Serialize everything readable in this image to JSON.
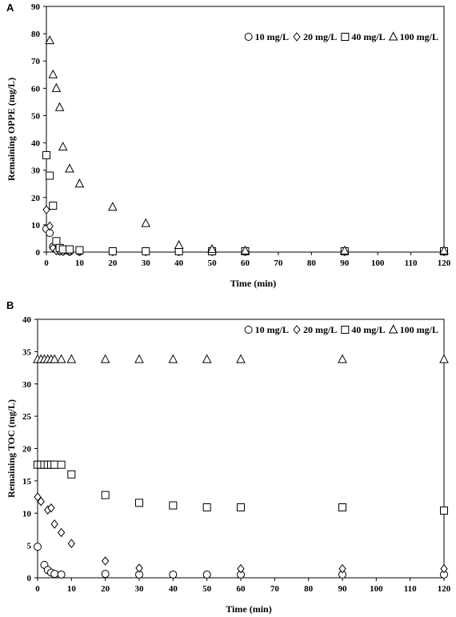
{
  "chart_data": [
    {
      "type": "scatter",
      "panel_label": "A",
      "xlabel": "Time (min)",
      "ylabel": "Remaining OPPE  (mg/L)",
      "xlim": [
        0,
        120
      ],
      "ylim": [
        0,
        90
      ],
      "x_ticks": [
        "0",
        "10",
        "20",
        "30",
        "40",
        "50",
        "60",
        "70",
        "80",
        "90",
        "100",
        "110",
        "120"
      ],
      "y_ticks": [
        "0",
        "10",
        "20",
        "30",
        "40",
        "50",
        "60",
        "70",
        "80",
        "90"
      ],
      "legend_position": "top-right",
      "series": [
        {
          "name": "10 mg/L",
          "marker": "circle",
          "x": [
            0,
            1,
            2,
            3,
            4,
            5,
            7,
            10,
            20,
            30,
            40,
            50,
            60,
            90,
            120
          ],
          "y": [
            8.5,
            7,
            2,
            1,
            0.5,
            0.3,
            0.2,
            0.2,
            0.2,
            0.2,
            0.2,
            0.2,
            0.2,
            0.2,
            0.2
          ]
        },
        {
          "name": "20 mg/L",
          "marker": "diamond",
          "x": [
            0,
            1,
            2,
            3,
            4,
            5,
            7,
            10,
            20,
            30,
            40,
            50,
            60,
            90,
            120
          ],
          "y": [
            15.5,
            9.5,
            1.5,
            0.5,
            0.3,
            0.2,
            0.2,
            0.2,
            0.2,
            0.2,
            0.2,
            0.2,
            0.2,
            0.2,
            0.2
          ]
        },
        {
          "name": "40 mg/L",
          "marker": "square",
          "x": [
            0,
            1,
            2,
            3,
            4,
            5,
            7,
            10,
            20,
            30,
            40,
            50,
            60,
            90,
            120
          ],
          "y": [
            35.5,
            28,
            17,
            4,
            1.5,
            1,
            1,
            0.7,
            0.3,
            0.3,
            0.3,
            0.3,
            0.3,
            0.3,
            0.3
          ]
        },
        {
          "name": "100 mg/L",
          "marker": "triangle",
          "x": [
            1,
            2,
            3,
            4,
            5,
            7,
            10,
            20,
            30,
            40,
            50,
            60,
            90,
            120
          ],
          "y": [
            77.5,
            65,
            60,
            53,
            38.5,
            30.5,
            25,
            16.5,
            10.5,
            2.5,
            1,
            0.5,
            0.5,
            0.5
          ]
        }
      ]
    },
    {
      "type": "scatter",
      "panel_label": "B",
      "xlabel": "Time (min)",
      "ylabel": "Remaining TOC  (mg/L)",
      "xlim": [
        0,
        120
      ],
      "ylim": [
        0,
        40
      ],
      "x_ticks": [
        "0",
        "10",
        "20",
        "30",
        "40",
        "50",
        "60",
        "70",
        "80",
        "90",
        "100",
        "110",
        "120"
      ],
      "y_ticks": [
        "0",
        "5",
        "10",
        "15",
        "20",
        "25",
        "30",
        "35",
        "40"
      ],
      "legend_position": "top-right",
      "series": [
        {
          "name": "10 mg/L",
          "marker": "circle",
          "x": [
            0,
            2,
            3,
            4,
            5,
            7,
            20,
            30,
            40,
            50,
            60,
            90,
            120
          ],
          "y": [
            4.8,
            2,
            1.2,
            0.8,
            0.6,
            0.5,
            0.6,
            0.5,
            0.5,
            0.5,
            0.5,
            0.5,
            0.5
          ]
        },
        {
          "name": "20 mg/L",
          "marker": "diamond",
          "x": [
            0,
            1,
            3,
            4,
            5,
            7,
            10,
            20,
            30,
            60,
            90,
            120
          ],
          "y": [
            12.5,
            11.8,
            10.5,
            10.8,
            8.3,
            7,
            5.3,
            2.6,
            1.5,
            1.4,
            1.4,
            1.4
          ]
        },
        {
          "name": "40 mg/L",
          "marker": "square",
          "x": [
            0,
            1,
            2,
            3,
            4,
            5,
            7,
            10,
            20,
            30,
            40,
            50,
            60,
            90,
            120
          ],
          "y": [
            17.5,
            17.5,
            17.5,
            17.5,
            17.5,
            17.5,
            17.5,
            16,
            12.8,
            11.6,
            11.2,
            10.9,
            10.9,
            10.9,
            10.4
          ]
        },
        {
          "name": "100 mg/L",
          "marker": "triangle",
          "x": [
            0,
            1,
            2,
            3,
            4,
            5,
            7,
            10,
            20,
            30,
            40,
            50,
            60,
            90,
            120
          ],
          "y": [
            33.8,
            33.8,
            33.8,
            33.8,
            33.8,
            33.8,
            33.8,
            33.8,
            33.8,
            33.8,
            33.8,
            33.8,
            33.8,
            33.8,
            33.8
          ]
        }
      ]
    }
  ]
}
